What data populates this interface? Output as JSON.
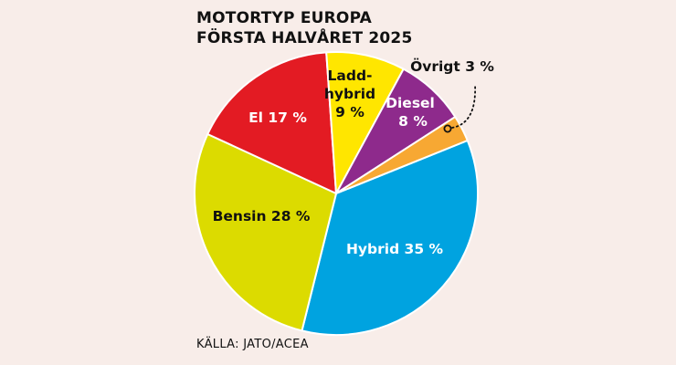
{
  "title_line1": "MOTORTYP EUROPA",
  "title_line2": "FÖRSTA HALVÅRET 2025",
  "source": "KÄLLA: JATO/ACEA",
  "chart_data": {
    "type": "pie",
    "title": "MOTORTYP EUROPA FÖRSTA HALVÅRET 2025",
    "slices": [
      {
        "name": "Hybrid",
        "value": 35,
        "label": "Hybrid 35 %",
        "color": "#00a3e0",
        "text_color": "#ffffff"
      },
      {
        "name": "Bensin",
        "value": 28,
        "label": "Bensin 28 %",
        "color": "#dcdb00",
        "text_color": "#111111"
      },
      {
        "name": "El",
        "value": 17,
        "label": "El 17 %",
        "color": "#e31b23",
        "text_color": "#ffffff"
      },
      {
        "name": "Laddhybrid",
        "value": 9,
        "label_line1": "Ladd-",
        "label_line2": "hybrid",
        "label_line3": "9 %",
        "color": "#ffe600",
        "text_color": "#111111"
      },
      {
        "name": "Diesel",
        "value": 8,
        "label_line1": "Diesel",
        "label_line2": "8 %",
        "color": "#8e2a8c",
        "text_color": "#ffffff"
      },
      {
        "name": "Övrigt",
        "value": 3,
        "label": "Övrigt 3 %",
        "color": "#f7a833",
        "text_color": "#111111"
      }
    ]
  }
}
